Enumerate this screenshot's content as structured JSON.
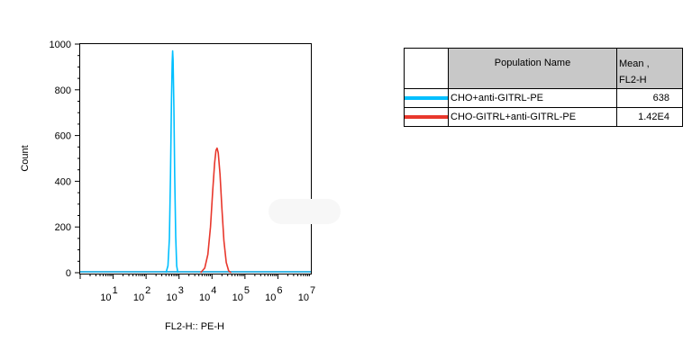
{
  "chart_data": {
    "type": "line",
    "title": "",
    "xlabel": "FL2-H:: PE-H",
    "ylabel": "Count",
    "xscale": "log",
    "xlim": [
      1,
      10000000
    ],
    "ylim": [
      0,
      1000
    ],
    "yticks": [
      0,
      200,
      400,
      600,
      800,
      1000
    ],
    "xtick_labels": [
      {
        "base": "10",
        "exp": "1"
      },
      {
        "base": "10",
        "exp": "2"
      },
      {
        "base": "10",
        "exp": "3"
      },
      {
        "base": "10",
        "exp": "4"
      },
      {
        "base": "10",
        "exp": "5"
      },
      {
        "base": "10",
        "exp": "6"
      },
      {
        "base": "10",
        "exp": "7"
      }
    ],
    "series": [
      {
        "name": "CHO+anti-GITRL-PE",
        "color": "#00bfff",
        "peak_x": 638,
        "peak_count": 970,
        "points": [
          [
            400,
            0
          ],
          [
            460,
            30
          ],
          [
            510,
            150
          ],
          [
            550,
            420
          ],
          [
            590,
            750
          ],
          [
            620,
            920
          ],
          [
            638,
            970
          ],
          [
            660,
            930
          ],
          [
            700,
            720
          ],
          [
            740,
            420
          ],
          [
            790,
            160
          ],
          [
            850,
            30
          ],
          [
            920,
            0
          ]
        ]
      },
      {
        "name": "CHO-GITRL+anti-GITRL-PE",
        "color": "#e8372c",
        "peak_x": 14200,
        "peak_count": 545,
        "points": [
          [
            4500,
            0
          ],
          [
            6000,
            20
          ],
          [
            7500,
            80
          ],
          [
            9000,
            200
          ],
          [
            10500,
            360
          ],
          [
            12000,
            480
          ],
          [
            13200,
            535
          ],
          [
            14200,
            545
          ],
          [
            15500,
            525
          ],
          [
            17500,
            430
          ],
          [
            20000,
            280
          ],
          [
            23000,
            140
          ],
          [
            27000,
            45
          ],
          [
            32000,
            8
          ],
          [
            38000,
            0
          ]
        ]
      }
    ],
    "legend_position": "right",
    "grid": false
  },
  "legend_table": {
    "header_name": "Population Name",
    "header_mean_line1": "Mean ,",
    "header_mean_line2": "FL2-H",
    "rows": [
      {
        "name": "CHO+anti-GITRL-PE",
        "mean": "638",
        "color": "#00bfff"
      },
      {
        "name": "CHO-GITRL+anti-GITRL-PE",
        "mean": "1.42E4",
        "color": "#e8372c"
      }
    ]
  }
}
